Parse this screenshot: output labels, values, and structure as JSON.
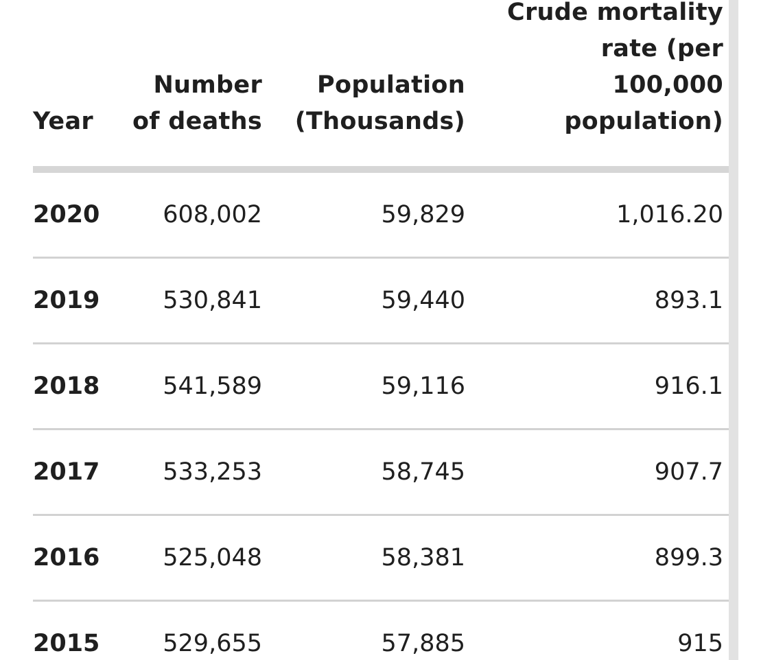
{
  "table": {
    "headers": {
      "year": "Year",
      "deaths": [
        "Number",
        "of deaths"
      ],
      "population": [
        "Population",
        "(Thousands)"
      ],
      "rate": [
        "Crude mortality",
        "rate (per",
        "100,000",
        "population)"
      ]
    },
    "rows": [
      {
        "year": "2020",
        "deaths": "608,002",
        "population": "59,829",
        "rate": "1,016.20"
      },
      {
        "year": "2019",
        "deaths": "530,841",
        "population": "59,440",
        "rate": "893.1"
      },
      {
        "year": "2018",
        "deaths": "541,589",
        "population": "59,116",
        "rate": "916.1"
      },
      {
        "year": "2017",
        "deaths": "533,253",
        "population": "58,745",
        "rate": "907.7"
      },
      {
        "year": "2016",
        "deaths": "525,048",
        "population": "58,381",
        "rate": "899.3"
      },
      {
        "year": "2015",
        "deaths": "529,655",
        "population": "57,885",
        "rate": "915"
      }
    ]
  }
}
